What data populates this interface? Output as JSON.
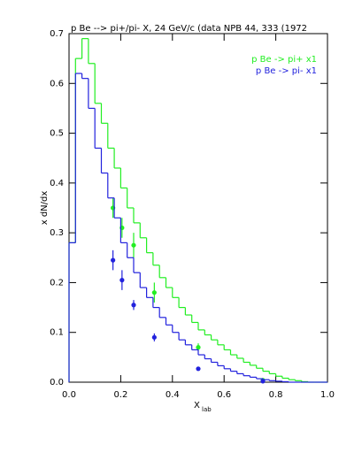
{
  "chart_data": {
    "type": "step-histogram",
    "title": "p Be --> pi+/pi- X, 24 GeV/c (data NPB 44, 333 (1972",
    "x_label": "X",
    "x_label_sub": "lab",
    "y_label": "x dN/dx",
    "xlim": [
      0,
      1
    ],
    "ylim": [
      0,
      0.7
    ],
    "xticks": [
      {
        "value": 0,
        "label": "0.0"
      },
      0.2,
      0.4,
      0.6,
      0.8,
      {
        "value": 1,
        "label": "1.0"
      }
    ],
    "yticks": [
      {
        "value": 0,
        "label": "0.0"
      },
      0.1,
      0.2,
      0.3,
      0.4,
      0.5,
      0.6,
      0.7
    ],
    "bins": [
      0,
      0.025,
      0.05,
      0.075,
      0.1,
      0.125,
      0.15,
      0.175,
      0.2,
      0.225,
      0.25,
      0.275,
      0.3,
      0.325,
      0.35,
      0.375,
      0.4,
      0.425,
      0.45,
      0.475,
      0.5,
      0.525,
      0.55,
      0.575,
      0.6,
      0.625,
      0.65,
      0.675,
      0.7,
      0.725,
      0.75,
      0.775,
      0.8,
      0.825,
      0.85,
      0.875,
      0.9,
      0.925,
      0.95,
      0.975,
      1
    ],
    "series": [
      {
        "name": "p Be -> pi+ x1",
        "color": "#22ee22",
        "values": [
          0.28,
          0.65,
          0.69,
          0.64,
          0.56,
          0.52,
          0.47,
          0.43,
          0.39,
          0.35,
          0.32,
          0.29,
          0.26,
          0.235,
          0.21,
          0.19,
          0.17,
          0.15,
          0.135,
          0.12,
          0.105,
          0.095,
          0.085,
          0.075,
          0.065,
          0.055,
          0.048,
          0.04,
          0.034,
          0.028,
          0.022,
          0.017,
          0.012,
          0.008,
          0.005,
          0.003,
          0.001,
          0,
          0,
          0
        ],
        "points": {
          "x": [
            0.17,
            0.205,
            0.25,
            0.33,
            0.5,
            0.75
          ],
          "y": [
            0.35,
            0.31,
            0.275,
            0.18,
            0.07,
            0.004
          ],
          "err": [
            0.02,
            0.02,
            0.025,
            0.02,
            0.008,
            0.003
          ]
        }
      },
      {
        "name": "p Be -> pi- x1",
        "color": "#2222dd",
        "values": [
          0.28,
          0.62,
          0.61,
          0.55,
          0.47,
          0.42,
          0.37,
          0.33,
          0.28,
          0.25,
          0.22,
          0.19,
          0.17,
          0.15,
          0.13,
          0.115,
          0.1,
          0.085,
          0.075,
          0.065,
          0.055,
          0.047,
          0.04,
          0.033,
          0.027,
          0.022,
          0.017,
          0.013,
          0.01,
          0.007,
          0.005,
          0.003,
          0.002,
          0.001,
          0,
          0,
          0,
          0,
          0,
          0
        ],
        "points": {
          "x": [
            0.17,
            0.205,
            0.25,
            0.33,
            0.5,
            0.75
          ],
          "y": [
            0.245,
            0.205,
            0.155,
            0.09,
            0.027,
            0.002
          ],
          "err": [
            0.02,
            0.02,
            0.01,
            0.008,
            0.004,
            0.002
          ]
        }
      }
    ]
  }
}
